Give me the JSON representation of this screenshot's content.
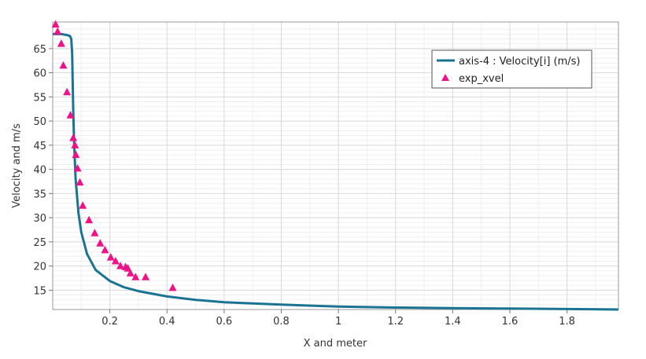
{
  "chart_data": {
    "type": "line",
    "title": "",
    "xlabel": "X and meter",
    "ylabel": "Velocity and m/s",
    "xlim": [
      0.0,
      1.98
    ],
    "ylim": [
      11.0,
      70.5
    ],
    "x_ticks": [
      0.2,
      0.4,
      0.6,
      0.8,
      1.0,
      1.2,
      1.4,
      1.6,
      1.8
    ],
    "x_tick_labels": [
      "0.2",
      "0.4",
      "0.6",
      "0.8",
      "1",
      "1.2",
      "1.4",
      "1.6",
      "1.8"
    ],
    "y_ticks": [
      15,
      20,
      25,
      30,
      35,
      40,
      45,
      50,
      55,
      60,
      65
    ],
    "y_tick_labels": [
      "15",
      "20",
      "25",
      "30",
      "35",
      "40",
      "45",
      "50",
      "55",
      "60",
      "65"
    ],
    "grid": true,
    "legend_position": "top-right",
    "series": [
      {
        "name": "axis-4 : Velocity[i] (m/s)",
        "kind": "line",
        "color": "#1b7393",
        "x": [
          0.0,
          0.03,
          0.05,
          0.06,
          0.065,
          0.068,
          0.07,
          0.072,
          0.075,
          0.08,
          0.09,
          0.1,
          0.12,
          0.15,
          0.2,
          0.25,
          0.3,
          0.4,
          0.5,
          0.6,
          0.8,
          1.0,
          1.2,
          1.4,
          1.6,
          1.8,
          1.98
        ],
        "y": [
          68.0,
          68.0,
          67.8,
          67.6,
          67.0,
          64.0,
          58.0,
          52.0,
          45.5,
          38.0,
          31.0,
          27.0,
          22.5,
          19.2,
          16.9,
          15.6,
          14.8,
          13.7,
          13.0,
          12.5,
          12.0,
          11.6,
          11.4,
          11.3,
          11.2,
          11.1,
          11.0
        ]
      },
      {
        "name": "exp_xvel",
        "kind": "scatter",
        "marker": "triangle",
        "color": "#ee1289",
        "x": [
          0.01,
          0.017,
          0.03,
          0.037,
          0.05,
          0.062,
          0.072,
          0.078,
          0.081,
          0.087,
          0.095,
          0.105,
          0.127,
          0.147,
          0.166,
          0.183,
          0.203,
          0.22,
          0.237,
          0.255,
          0.263,
          0.272,
          0.29,
          0.325,
          0.42
        ],
        "y": [
          70.0,
          68.5,
          66.0,
          61.5,
          56.0,
          51.2,
          46.5,
          45.0,
          43.0,
          40.2,
          37.3,
          32.5,
          29.5,
          26.8,
          24.7,
          23.3,
          21.8,
          21.0,
          20.0,
          19.8,
          19.5,
          18.5,
          17.7,
          17.7,
          15.5
        ]
      }
    ]
  }
}
